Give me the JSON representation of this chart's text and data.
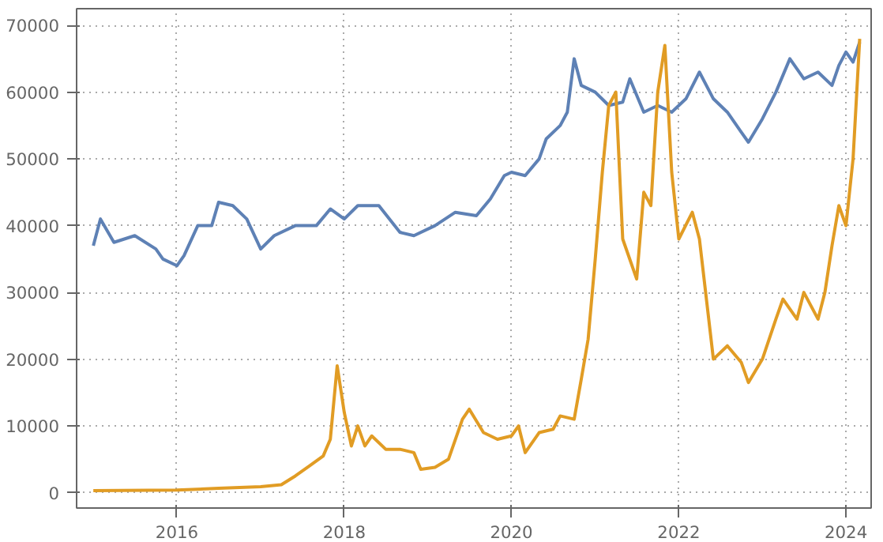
{
  "chart_data": {
    "type": "line",
    "xlim": [
      "2014-10-20",
      "2024-04-20"
    ],
    "ylim": [
      -2300,
      72500
    ],
    "xticks": [
      "2016",
      "2018",
      "2020",
      "2022",
      "2024"
    ],
    "yticks": [
      0,
      10000,
      20000,
      30000,
      40000,
      50000,
      60000,
      70000
    ],
    "grid": true,
    "line_style": "solid",
    "series": [
      {
        "color": "#5e81b5",
        "x": [
          "2015-01",
          "2015-02",
          "2015-04",
          "2015-07",
          "2015-10",
          "2015-11",
          "2016-01",
          "2016-02",
          "2016-04",
          "2016-06",
          "2016-07",
          "2016-09",
          "2016-11",
          "2017-01",
          "2017-03",
          "2017-06",
          "2017-09",
          "2017-11",
          "2018-01",
          "2018-03",
          "2018-06",
          "2018-09",
          "2018-11",
          "2019-02",
          "2019-05",
          "2019-08",
          "2019-10",
          "2019-12",
          "2020-01",
          "2020-03",
          "2020-05",
          "2020-06",
          "2020-08",
          "2020-09",
          "2020-10",
          "2020-11",
          "2021-01",
          "2021-03",
          "2021-05",
          "2021-06",
          "2021-08",
          "2021-10",
          "2021-12",
          "2022-02",
          "2022-04",
          "2022-06",
          "2022-08",
          "2022-10",
          "2022-11",
          "2023-01",
          "2023-03",
          "2023-05",
          "2023-07",
          "2023-09",
          "2023-11",
          "2023-12",
          "2024-01",
          "2024-02",
          "2024-03"
        ],
        "values": [
          37000,
          41000,
          37500,
          38500,
          36500,
          35000,
          34000,
          35500,
          40000,
          40000,
          43500,
          43000,
          41000,
          36500,
          38500,
          40000,
          40000,
          42500,
          41000,
          43000,
          43000,
          39000,
          38500,
          40000,
          42000,
          41500,
          44000,
          47500,
          48000,
          47500,
          50000,
          53000,
          55000,
          57000,
          65000,
          61000,
          60000,
          58000,
          58500,
          62000,
          57000,
          58000,
          57000,
          59000,
          63000,
          59000,
          57000,
          54000,
          52500,
          56000,
          60000,
          65000,
          62000,
          63000,
          61000,
          64000,
          66000,
          64500,
          67500
        ]
      },
      {
        "color": "#e19c24",
        "x": [
          "2015-01",
          "2016-01",
          "2016-07",
          "2017-01",
          "2017-04",
          "2017-06",
          "2017-08",
          "2017-10",
          "2017-11",
          "2017-12",
          "2018-01",
          "2018-02",
          "2018-03",
          "2018-04",
          "2018-05",
          "2018-07",
          "2018-09",
          "2018-11",
          "2018-12",
          "2019-02",
          "2019-04",
          "2019-06",
          "2019-07",
          "2019-09",
          "2019-11",
          "2020-01",
          "2020-02",
          "2020-03",
          "2020-05",
          "2020-07",
          "2020-08",
          "2020-10",
          "2020-11",
          "2020-12",
          "2021-01",
          "2021-02",
          "2021-03",
          "2021-04",
          "2021-05",
          "2021-07",
          "2021-08",
          "2021-09",
          "2021-10",
          "2021-11",
          "2021-12",
          "2022-01",
          "2022-03",
          "2022-04",
          "2022-06",
          "2022-08",
          "2022-10",
          "2022-11",
          "2023-01",
          "2023-03",
          "2023-04",
          "2023-06",
          "2023-07",
          "2023-09",
          "2023-10",
          "2023-11",
          "2023-12",
          "2024-01",
          "2024-02",
          "2024-03"
        ],
        "values": [
          300,
          400,
          650,
          900,
          1200,
          2500,
          4000,
          5500,
          8000,
          19000,
          12000,
          7000,
          10000,
          7000,
          8500,
          6500,
          6500,
          6000,
          3500,
          3800,
          5000,
          11000,
          12500,
          9000,
          8000,
          8500,
          10000,
          6000,
          9000,
          9500,
          11500,
          11000,
          17000,
          23000,
          35000,
          48000,
          58000,
          60000,
          38000,
          32000,
          45000,
          43000,
          60000,
          67000,
          48000,
          38000,
          42000,
          38000,
          20000,
          22000,
          19500,
          16500,
          20000,
          26000,
          29000,
          26000,
          30000,
          26000,
          30000,
          37000,
          43000,
          40000,
          50000,
          68000
        ]
      }
    ]
  }
}
